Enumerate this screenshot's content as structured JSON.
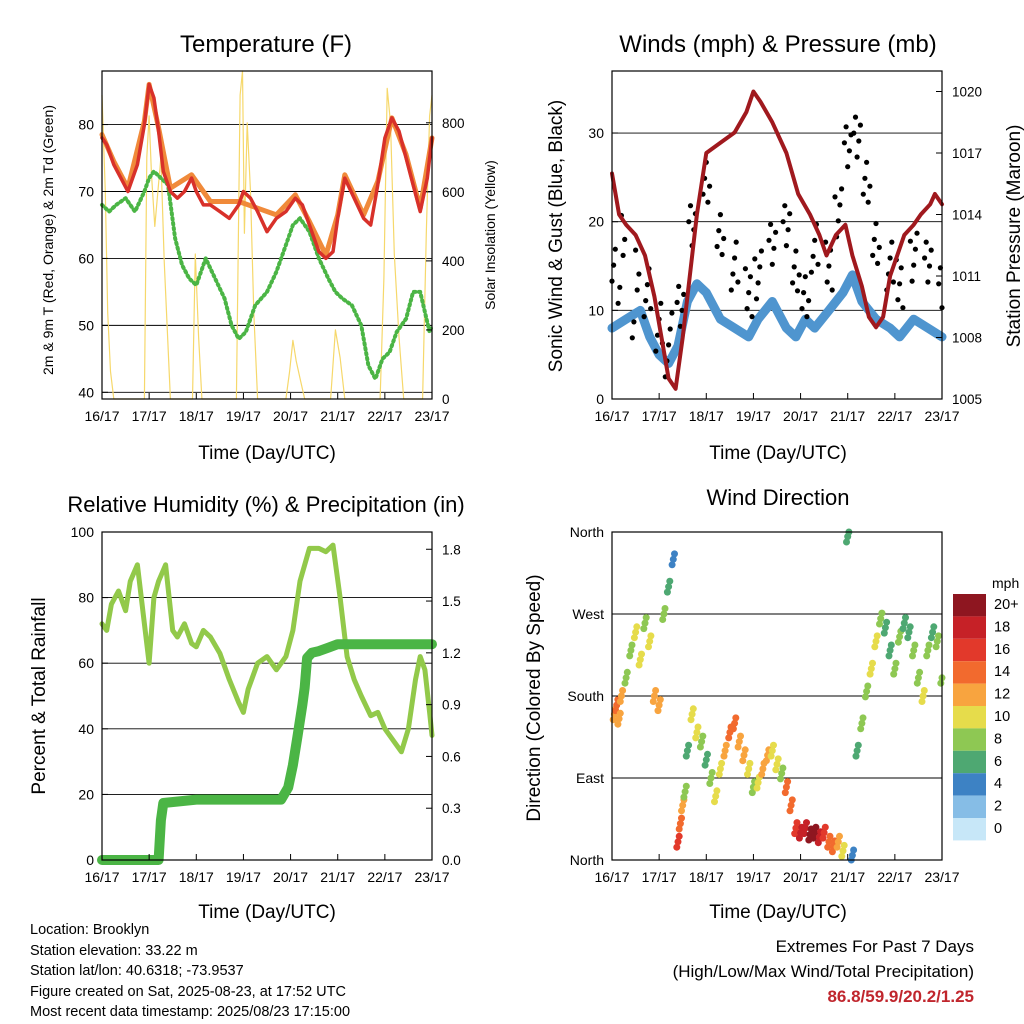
{
  "panels": {
    "temperature": {
      "title": "Temperature (F)",
      "ylabel_left": "2m & 9m T (Red, Orange) & 2m Td (Green)",
      "ylabel_right": "Solar Insolation (Yellow)",
      "xlabel": "Time (Day/UTC)"
    },
    "winds": {
      "title": "Winds (mph) & Pressure (mb)",
      "ylabel_left": "Sonic Wind & Gust (Blue, Black)",
      "ylabel_right": "Station Pressure (Maroon)",
      "xlabel": "Time (Day/UTC)"
    },
    "humidity": {
      "title": "Relative Humidity (%) & Precipitation (in)",
      "ylabel_left": "Percent & Total Rainfall",
      "xlabel": "Time (Day/UTC)"
    },
    "direction": {
      "title": "Wind Direction",
      "ylabel_left": "Direction (Colored By Speed)",
      "xlabel": "Time (Day/UTC)",
      "legend_title": "mph"
    }
  },
  "info": {
    "location": "Location: Brooklyn",
    "elevation": "Station elevation: 33.22 m",
    "latlon": "Station lat/lon: 40.6318; -73.9537",
    "created": "Figure created on Sat, 2025-08-23, at 17:52 UTC",
    "recent": "Most recent data timestamp: 2025/08/23 17:15:00"
  },
  "extremes": {
    "line1": "Extremes For Past 7 Days",
    "line2": "(High/Low/Max Wind/Total Precipitation)",
    "values": "86.8/59.9/20.2/1.25"
  },
  "colors": {
    "temp_2m": "#d8312a",
    "temp_9m": "#f08a3a",
    "dewpoint": "#4bb545",
    "solar": "#f6d86b",
    "wind": "#4f95cf",
    "gust": "#000000",
    "pressure": "#a0191e",
    "rh": "#92c94a",
    "precip": "#4bb545"
  },
  "chart_data": [
    {
      "id": "temperature",
      "type": "line",
      "title": "Temperature (F)",
      "xlabel": "Time (Day/UTC)",
      "ylabel": "2m & 9m T (Red, Orange) & 2m Td (Green)",
      "y2label": "Solar Insolation (Yellow)",
      "x_ticks": [
        "16/17",
        "17/17",
        "18/17",
        "19/17",
        "20/17",
        "21/17",
        "22/17",
        "23/17"
      ],
      "xlim": [
        0,
        7
      ],
      "ylim": [
        39,
        88
      ],
      "y_ticks": [
        40,
        50,
        60,
        70,
        80
      ],
      "y2lim": [
        0,
        950
      ],
      "y2_ticks": [
        0,
        200,
        400,
        600,
        800
      ],
      "series": [
        {
          "name": "2m T",
          "x": [
            0,
            0.1,
            0.25,
            0.4,
            0.55,
            0.75,
            0.9,
            1.0,
            1.1,
            1.2,
            1.3,
            1.45,
            1.6,
            1.75,
            1.9,
            2.0,
            2.15,
            2.3,
            2.5,
            2.7,
            2.9,
            3.0,
            3.15,
            3.3,
            3.5,
            3.7,
            3.9,
            4.1,
            4.25,
            4.4,
            4.6,
            4.75,
            4.9,
            5.0,
            5.15,
            5.35,
            5.55,
            5.7,
            5.85,
            6.0,
            6.15,
            6.3,
            6.45,
            6.6,
            6.75,
            6.9,
            7.0
          ],
          "values": [
            78,
            77,
            74,
            72,
            70,
            74,
            80,
            86,
            84,
            79,
            73,
            70,
            69,
            70,
            72,
            70,
            68,
            68,
            67,
            66,
            68,
            70,
            69,
            67,
            64,
            66,
            67,
            69,
            68,
            65,
            61,
            60,
            61,
            66,
            72,
            69,
            66,
            65,
            71,
            78,
            81,
            79,
            75,
            71,
            67,
            72,
            78
          ]
        },
        {
          "name": "9m T",
          "x": [
            0,
            0.25,
            0.55,
            0.9,
            1.0,
            1.2,
            1.45,
            1.9,
            2.3,
            2.9,
            3.3,
            3.7,
            4.1,
            4.4,
            4.75,
            5.0,
            5.15,
            5.55,
            5.85,
            6.15,
            6.45,
            6.75,
            7.0
          ],
          "values": [
            78.5,
            74.5,
            70.5,
            80.5,
            86,
            79.5,
            70.5,
            72.5,
            68.5,
            68.5,
            67.5,
            66.5,
            69.5,
            65.5,
            60.5,
            66.5,
            72.5,
            66.5,
            71.5,
            81,
            75.5,
            67.5,
            78
          ]
        },
        {
          "name": "2m Td",
          "x": [
            0,
            0.15,
            0.3,
            0.5,
            0.7,
            0.9,
            1.0,
            1.1,
            1.25,
            1.4,
            1.55,
            1.7,
            1.85,
            2.0,
            2.2,
            2.4,
            2.6,
            2.75,
            2.9,
            3.05,
            3.25,
            3.5,
            3.7,
            3.9,
            4.05,
            4.2,
            4.4,
            4.6,
            4.8,
            4.95,
            5.1,
            5.3,
            5.5,
            5.65,
            5.8,
            5.95,
            6.1,
            6.25,
            6.45,
            6.6,
            6.75,
            6.85,
            6.95,
            7.0
          ],
          "values": [
            68,
            67,
            68,
            69,
            67,
            70,
            72,
            73,
            72,
            71,
            63,
            59,
            57,
            56,
            60,
            57,
            54,
            50,
            48,
            49,
            53,
            55,
            58,
            62,
            65,
            66,
            64,
            60,
            57,
            55,
            54,
            53,
            50,
            44,
            42,
            45,
            46,
            49,
            51,
            55,
            55,
            52,
            49,
            50
          ]
        },
        {
          "name": "Solar Insolation",
          "axis": "y2",
          "x": [
            0,
            0.07,
            0.12,
            0.18,
            0.25,
            0.9,
            0.95,
            1.0,
            1.05,
            1.12,
            1.25,
            1.32,
            1.45,
            1.55,
            1.92,
            1.98,
            2.05,
            2.12,
            2.25,
            2.85,
            2.93,
            2.98,
            3.02,
            3.08,
            3.15,
            3.22,
            3.3,
            3.38,
            3.9,
            3.98,
            4.05,
            4.12,
            4.2,
            4.3,
            4.4,
            4.85,
            4.95,
            5.05,
            5.15,
            5.25,
            5.9,
            5.98,
            6.05,
            6.12,
            6.2,
            6.3,
            6.4,
            6.8,
            6.88,
            6.95,
            7.0
          ],
          "values": [
            880,
            600,
            250,
            80,
            0,
            0,
            700,
            820,
            650,
            500,
            700,
            400,
            0,
            0,
            0,
            420,
            180,
            0,
            0,
            0,
            880,
            950,
            480,
            800,
            600,
            250,
            0,
            0,
            0,
            80,
            170,
            110,
            60,
            0,
            0,
            0,
            200,
            120,
            0,
            0,
            0,
            350,
            900,
            800,
            420,
            180,
            0,
            0,
            480,
            820,
            880
          ]
        }
      ]
    },
    {
      "id": "winds",
      "type": "line",
      "title": "Winds (mph) & Pressure (mb)",
      "xlabel": "Time (Day/UTC)",
      "ylabel": "Sonic Wind & Gust (Blue, Black)",
      "y2label": "Station Pressure (Maroon)",
      "x_ticks": [
        "16/17",
        "17/17",
        "18/17",
        "19/17",
        "20/17",
        "21/17",
        "22/17",
        "23/17"
      ],
      "xlim": [
        0,
        7
      ],
      "ylim": [
        0,
        37
      ],
      "y_ticks": [
        0,
        10,
        20,
        30
      ],
      "y2lim": [
        1005,
        1021
      ],
      "y2_ticks": [
        1005,
        1008,
        1011,
        1014,
        1017,
        1020
      ],
      "series": [
        {
          "name": "Sonic Wind",
          "x": [
            0,
            0.3,
            0.6,
            0.8,
            1.0,
            1.2,
            1.4,
            1.6,
            1.8,
            2.0,
            2.3,
            2.6,
            2.9,
            3.1,
            3.4,
            3.7,
            3.9,
            4.1,
            4.3,
            4.6,
            4.9,
            5.1,
            5.3,
            5.6,
            5.9,
            6.1,
            6.4,
            6.7,
            7.0
          ],
          "values": [
            8,
            9,
            10,
            7,
            5,
            4,
            6,
            11,
            13,
            12,
            9,
            8,
            7,
            9,
            11,
            8,
            7,
            9,
            8,
            10,
            12,
            14,
            11,
            9,
            8,
            7,
            9,
            8,
            7
          ]
        },
        {
          "name": "Gust",
          "x": [
            0,
            0.2,
            0.5,
            0.75,
            1.0,
            1.2,
            1.45,
            1.7,
            2.0,
            2.3,
            2.6,
            2.9,
            3.1,
            3.4,
            3.7,
            3.9,
            4.1,
            4.3,
            4.6,
            4.8,
            5.0,
            5.2,
            5.4,
            5.6,
            5.9,
            6.1,
            6.4,
            6.7,
            7.0
          ],
          "values": [
            16,
            18,
            15,
            12,
            9,
            7,
            10,
            20,
            24,
            19,
            15,
            12,
            14,
            17,
            20,
            14,
            12,
            17,
            15,
            21,
            28,
            30,
            24,
            18,
            15,
            13,
            16,
            15,
            13
          ]
        },
        {
          "name": "Station Pressure",
          "axis": "y2",
          "x": [
            0,
            0.15,
            0.3,
            0.5,
            0.7,
            0.9,
            1.05,
            1.2,
            1.35,
            1.5,
            1.65,
            1.8,
            2.0,
            2.3,
            2.6,
            2.85,
            3.0,
            3.15,
            3.4,
            3.7,
            3.95,
            4.2,
            4.4,
            4.55,
            4.75,
            4.95,
            5.1,
            5.3,
            5.45,
            5.6,
            5.75,
            5.9,
            6.05,
            6.2,
            6.4,
            6.55,
            6.75,
            6.85,
            7.0
          ],
          "values": [
            1016,
            1014,
            1013.5,
            1013,
            1012,
            1010,
            1008,
            1006,
            1005.5,
            1008,
            1011,
            1014,
            1017,
            1017.5,
            1018,
            1019,
            1020,
            1019.5,
            1018.5,
            1017,
            1015,
            1014,
            1013,
            1012,
            1013,
            1013.5,
            1012,
            1010.5,
            1009,
            1008.5,
            1009,
            1011,
            1012,
            1013,
            1013.5,
            1014,
            1014.5,
            1015,
            1014.5
          ]
        }
      ]
    },
    {
      "id": "humidity",
      "type": "line",
      "title": "Relative Humidity (%) & Precipitation (in)",
      "xlabel": "Time (Day/UTC)",
      "ylabel": "Percent & Total Rainfall",
      "x_ticks": [
        "16/17",
        "17/17",
        "18/17",
        "19/17",
        "20/17",
        "21/17",
        "22/17",
        "23/17"
      ],
      "xlim": [
        0,
        7
      ],
      "ylim": [
        0,
        100
      ],
      "y_ticks": [
        0,
        20,
        40,
        60,
        80,
        100
      ],
      "y2lim": [
        0,
        1.9
      ],
      "y2_ticks": [
        0.0,
        0.3,
        0.6,
        0.9,
        1.2,
        1.5,
        1.8
      ],
      "series": [
        {
          "name": "Relative Humidity",
          "x": [
            0,
            0.1,
            0.2,
            0.35,
            0.5,
            0.6,
            0.75,
            0.9,
            1.0,
            1.1,
            1.2,
            1.35,
            1.5,
            1.6,
            1.75,
            1.9,
            2.0,
            2.15,
            2.3,
            2.5,
            2.7,
            2.9,
            3.0,
            3.1,
            3.3,
            3.5,
            3.7,
            3.9,
            4.05,
            4.2,
            4.4,
            4.6,
            4.75,
            4.9,
            5.05,
            5.2,
            5.35,
            5.5,
            5.7,
            5.85,
            6.0,
            6.2,
            6.35,
            6.5,
            6.65,
            6.75,
            6.85,
            6.95,
            7.0
          ],
          "values": [
            72,
            70,
            78,
            82,
            76,
            85,
            90,
            72,
            60,
            80,
            85,
            90,
            70,
            68,
            72,
            66,
            65,
            70,
            68,
            63,
            55,
            48,
            45,
            52,
            60,
            62,
            58,
            62,
            70,
            85,
            95,
            95,
            94,
            96,
            80,
            62,
            55,
            50,
            44,
            45,
            40,
            36,
            33,
            40,
            55,
            62,
            58,
            45,
            38
          ]
        },
        {
          "name": "Total Rainfall",
          "axis": "y2",
          "x": [
            0,
            0.5,
            1.0,
            1.2,
            1.25,
            1.3,
            2.0,
            3.0,
            3.8,
            3.95,
            4.05,
            4.15,
            4.25,
            4.3,
            4.35,
            4.45,
            4.6,
            4.8,
            5.0,
            6.0,
            7.0
          ],
          "values": [
            0,
            0,
            0,
            0,
            0.23,
            0.33,
            0.35,
            0.35,
            0.35,
            0.42,
            0.55,
            0.72,
            0.9,
            1.0,
            1.17,
            1.2,
            1.21,
            1.23,
            1.25,
            1.25,
            1.25
          ]
        }
      ]
    },
    {
      "id": "direction",
      "type": "scatter",
      "title": "Wind Direction",
      "xlabel": "Time (Day/UTC)",
      "ylabel": "Direction (Colored By Speed)",
      "x_ticks": [
        "16/17",
        "17/17",
        "18/17",
        "19/17",
        "20/17",
        "21/17",
        "22/17",
        "23/17"
      ],
      "xlim": [
        0,
        7
      ],
      "ylim": [
        0,
        360
      ],
      "y_ticks": [
        0,
        90,
        180,
        270,
        360
      ],
      "y_tick_labels": [
        "North",
        "East",
        "South",
        "West",
        "North"
      ],
      "legend_title": "mph",
      "legend_labels": [
        "20+",
        "18",
        "16",
        "14",
        "12",
        "10",
        "8",
        "6",
        "4",
        "2",
        "0"
      ],
      "legend_colors": [
        "#8e1620",
        "#c62127",
        "#e2392b",
        "#f26a2e",
        "#f8a43f",
        "#e6dc4b",
        "#8ec853",
        "#4ea872",
        "#3d82c4",
        "#86bde6",
        "#c7e7f8"
      ],
      "x": [
        0.05,
        0.1,
        0.15,
        0.2,
        0.3,
        0.4,
        0.5,
        0.6,
        0.7,
        0.8,
        0.9,
        1.0,
        1.1,
        1.2,
        1.3,
        1.4,
        1.45,
        1.5,
        1.55,
        1.6,
        1.7,
        1.8,
        1.9,
        2.0,
        2.1,
        2.2,
        2.3,
        2.4,
        2.5,
        2.6,
        2.7,
        2.8,
        2.9,
        3.0,
        3.1,
        3.2,
        3.3,
        3.4,
        3.5,
        3.6,
        3.7,
        3.8,
        3.9,
        4.0,
        4.1,
        4.2,
        4.3,
        4.4,
        4.5,
        4.6,
        4.7,
        4.8,
        4.9,
        5.0,
        5.1,
        5.2,
        5.3,
        5.4,
        5.5,
        5.6,
        5.7,
        5.8,
        5.9,
        6.0,
        6.1,
        6.2,
        6.3,
        6.4,
        6.5,
        6.6,
        6.7,
        6.8,
        6.9,
        7.0
      ],
      "y": [
        160,
        170,
        155,
        180,
        200,
        230,
        250,
        220,
        260,
        240,
        180,
        170,
        270,
        300,
        330,
        20,
        40,
        60,
        75,
        120,
        160,
        140,
        130,
        110,
        90,
        70,
        100,
        120,
        140,
        150,
        130,
        115,
        100,
        80,
        85,
        100,
        115,
        120,
        105,
        95,
        80,
        60,
        35,
        30,
        35,
        28,
        30,
        25,
        30,
        20,
        15,
        20,
        10,
        355,
        5,
        120,
        150,
        185,
        210,
        240,
        265,
        255,
        230,
        210,
        245,
        260,
        250,
        230,
        200,
        180,
        230,
        250,
        240,
        200
      ],
      "values": [
        12,
        13,
        11,
        12,
        8,
        7,
        9,
        10,
        8,
        9,
        11,
        12,
        8,
        6,
        4,
        15,
        14,
        12,
        8,
        6,
        10,
        9,
        7,
        6,
        8,
        9,
        10,
        11,
        13,
        14,
        12,
        11,
        9,
        8,
        10,
        12,
        11,
        10,
        9,
        8,
        13,
        14,
        16,
        17,
        18,
        20,
        19,
        17,
        15,
        14,
        13,
        12,
        10,
        6,
        3,
        5,
        8,
        7,
        9,
        10,
        8,
        6,
        5,
        7,
        8,
        6,
        5,
        7,
        8,
        9,
        7,
        6,
        8,
        7
      ]
    }
  ]
}
